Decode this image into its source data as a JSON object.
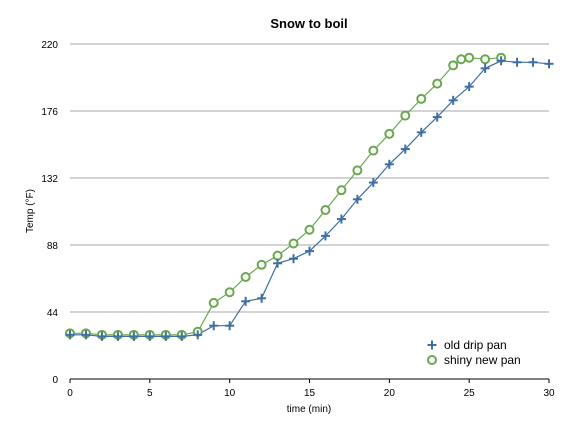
{
  "chart_data": {
    "type": "line",
    "title": "Snow to boil",
    "xlabel": "time (min)",
    "ylabel": "Temp (°F)",
    "xlim": [
      0,
      30
    ],
    "ylim": [
      0,
      220
    ],
    "xticks": [
      0,
      5,
      10,
      15,
      20,
      25,
      30
    ],
    "yticks": [
      0,
      44,
      88,
      132,
      176,
      220
    ],
    "xtick_labels": [
      "0",
      "5",
      "10",
      "15",
      "20",
      "25",
      "30"
    ],
    "ytick_labels": [
      "0",
      "44",
      "88",
      "132",
      "176",
      "220"
    ],
    "grid": "horizontal",
    "legend": "bottom-right",
    "series": [
      {
        "name": "old drip pan",
        "marker": "plus",
        "color": "#3e6fa3",
        "x": [
          0,
          1,
          2,
          3,
          4,
          5,
          6,
          7,
          8,
          9,
          10,
          11,
          12,
          13,
          14,
          15,
          16,
          17,
          18,
          19,
          20,
          21,
          22,
          23,
          24,
          25,
          26,
          27,
          28,
          29,
          30
        ],
        "y": [
          29,
          29,
          28,
          28,
          28,
          28,
          28,
          28,
          29,
          35,
          35,
          51,
          53,
          76,
          79,
          84,
          94,
          105,
          118,
          129,
          141,
          151,
          162,
          172,
          183,
          192,
          204,
          209,
          208,
          208,
          207
        ]
      },
      {
        "name": "shiny new pan",
        "marker": "circle",
        "color": "#6aa84f",
        "x": [
          0,
          1,
          2,
          3,
          4,
          5,
          6,
          7,
          8,
          9,
          10,
          11,
          12,
          13,
          14,
          15,
          16,
          17,
          18,
          19,
          20,
          21,
          22,
          23,
          24,
          24.5,
          25,
          26,
          27
        ],
        "y": [
          30,
          30,
          29,
          29,
          29,
          29,
          29,
          29,
          31,
          50,
          57,
          67,
          75,
          81,
          89,
          98,
          111,
          124,
          137,
          150,
          161,
          173,
          184,
          194,
          206,
          210,
          211,
          210,
          211
        ]
      }
    ]
  }
}
